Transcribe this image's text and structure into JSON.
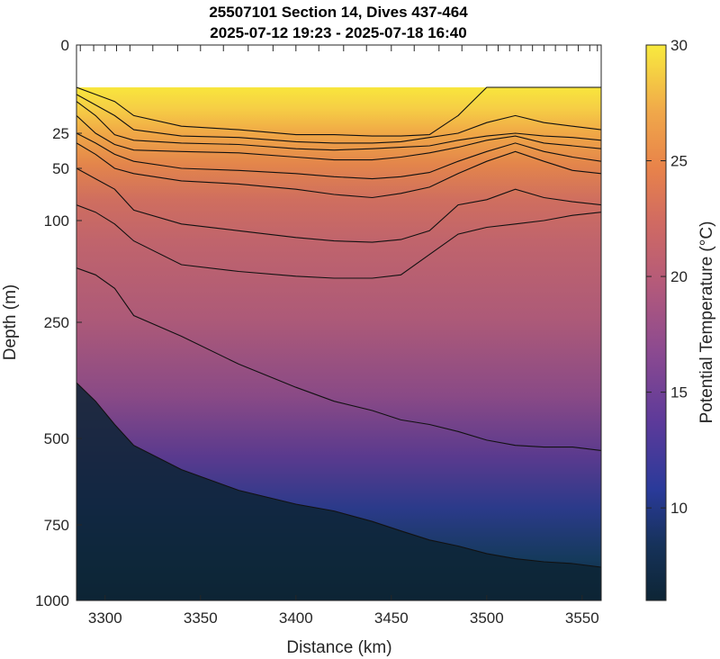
{
  "chart_data": {
    "type": "contour",
    "title": "25507101 Section 14, Dives 437-464",
    "subtitle": "2025-07-12 19:23 - 2025-07-18 16:40",
    "xlabel": "Distance (km)",
    "ylabel": "Depth (m)",
    "xlim": [
      3285,
      3560
    ],
    "x_ticks": [
      "3300",
      "3350",
      "3400",
      "3450",
      "3500",
      "3550"
    ],
    "y_ticks": [
      "0",
      "25",
      "50",
      "100",
      "250",
      "500",
      "750",
      "1000"
    ],
    "y_scale": "piecewise (expanded near surface)",
    "data_top_depth": 12,
    "dive_positions_km": [
      3287,
      3294,
      3300,
      3306,
      3313,
      3325,
      3338,
      3350,
      3362,
      3375,
      3388,
      3400,
      3412,
      3425,
      3437,
      3450,
      3462,
      3475,
      3487,
      3500,
      3506,
      3512,
      3518,
      3524,
      3530,
      3536,
      3542,
      3548,
      3554,
      3558
    ],
    "colorbar": {
      "label": "Potential Temperature (°C)",
      "range": [
        6,
        30
      ],
      "ticks": [
        "10",
        "15",
        "20",
        "25",
        "30"
      ]
    },
    "contour_distances_km": [
      3285,
      3295,
      3305,
      3315,
      3340,
      3370,
      3400,
      3420,
      3440,
      3455,
      3470,
      3485,
      3500,
      3515,
      3530,
      3545,
      3560
    ],
    "contours": [
      {
        "depths_m": [
          12,
          14,
          16,
          20,
          23,
          24,
          26,
          26,
          27,
          27,
          26,
          20,
          12,
          12,
          12,
          12,
          12
        ]
      },
      {
        "depths_m": [
          14,
          17,
          20,
          24,
          27,
          28,
          31,
          32,
          32,
          31,
          28,
          25,
          22,
          20,
          22,
          23,
          24
        ]
      },
      {
        "depths_m": [
          16,
          20,
          26,
          30,
          32,
          33,
          36,
          37,
          36,
          35,
          34,
          30,
          27,
          25,
          27,
          28,
          30
        ]
      },
      {
        "depths_m": [
          20,
          25,
          33,
          37,
          38,
          39,
          42,
          44,
          44,
          42,
          39,
          35,
          30,
          27,
          32,
          34,
          36
        ]
      },
      {
        "depths_m": [
          25,
          32,
          40,
          45,
          50,
          52,
          55,
          58,
          60,
          58,
          54,
          45,
          38,
          32,
          38,
          42,
          45
        ]
      },
      {
        "depths_m": [
          32,
          40,
          50,
          55,
          62,
          65,
          70,
          75,
          78,
          74,
          68,
          55,
          45,
          38,
          45,
          52,
          55
        ]
      },
      {
        "depths_m": [
          50,
          60,
          70,
          90,
          105,
          115,
          125,
          130,
          132,
          128,
          115,
          85,
          80,
          70,
          78,
          82,
          85
        ]
      },
      {
        "depths_m": [
          85,
          92,
          105,
          130,
          165,
          175,
          182,
          185,
          185,
          180,
          150,
          120,
          110,
          105,
          100,
          95,
          92
        ]
      },
      {
        "depths_m": [
          170,
          180,
          200,
          240,
          280,
          340,
          390,
          420,
          440,
          460,
          470,
          485,
          505,
          520,
          525,
          525,
          535
        ]
      },
      {
        "depths_m": [
          380,
          420,
          470,
          520,
          590,
          650,
          690,
          710,
          740,
          770,
          800,
          820,
          845,
          862,
          872,
          878,
          890
        ]
      }
    ]
  }
}
